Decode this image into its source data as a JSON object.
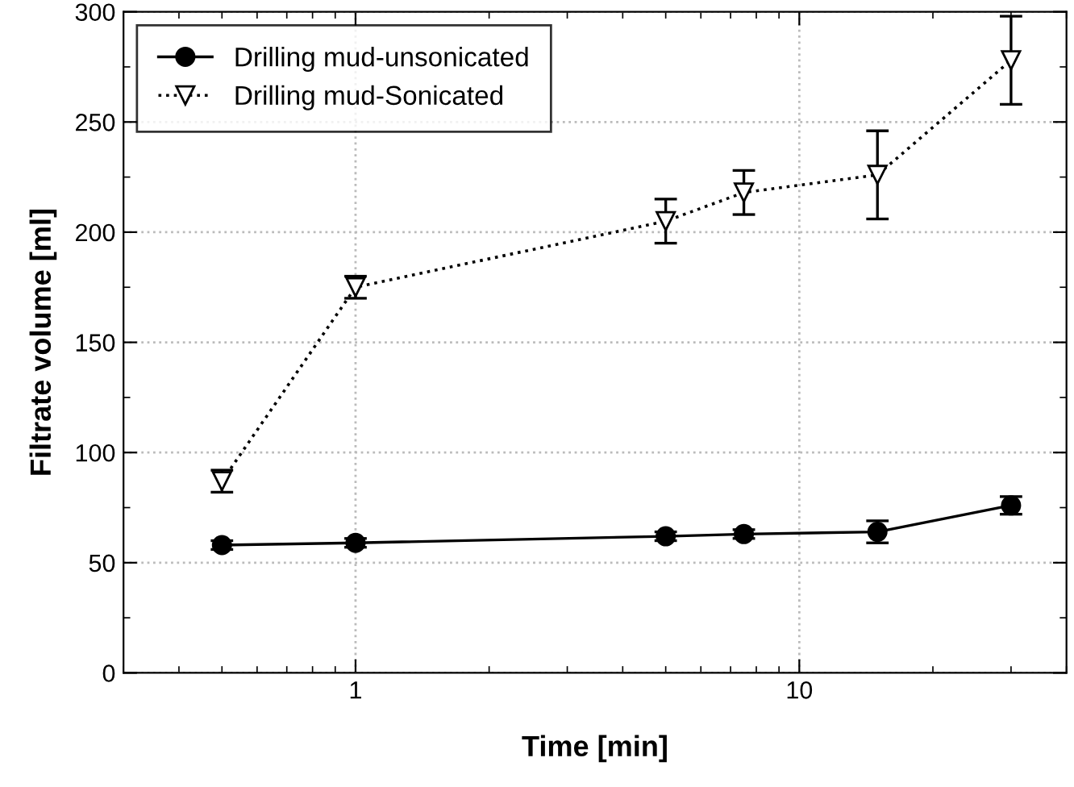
{
  "chart_data": {
    "type": "line",
    "xlabel": "Time [min]",
    "ylabel": "Filtrate volume [ml]",
    "log": "x",
    "x": [
      0.5,
      1,
      5,
      7.5,
      15,
      30
    ],
    "series": [
      {
        "name": "Drilling mud-unsonicated",
        "color": "#000000",
        "marker": "circle",
        "line_style": "solid",
        "values": [
          58,
          59,
          62,
          63,
          64,
          76
        ],
        "errors": [
          2,
          2,
          2,
          2,
          5,
          4
        ]
      },
      {
        "name": "Drilling mud-Sonicated",
        "color": "#000000",
        "marker": "triangle",
        "line_style": "dotted",
        "values": [
          87,
          175,
          205,
          218,
          226,
          278
        ],
        "errors": [
          5,
          5,
          10,
          10,
          20,
          20
        ]
      }
    ],
    "xlim": [
      0.3,
      40
    ],
    "xticks": [
      1,
      10
    ],
    "ylim": [
      0,
      300
    ],
    "yticks": [
      0,
      50,
      100,
      150,
      200,
      250,
      300
    ],
    "grid": true,
    "legend": "top left"
  }
}
